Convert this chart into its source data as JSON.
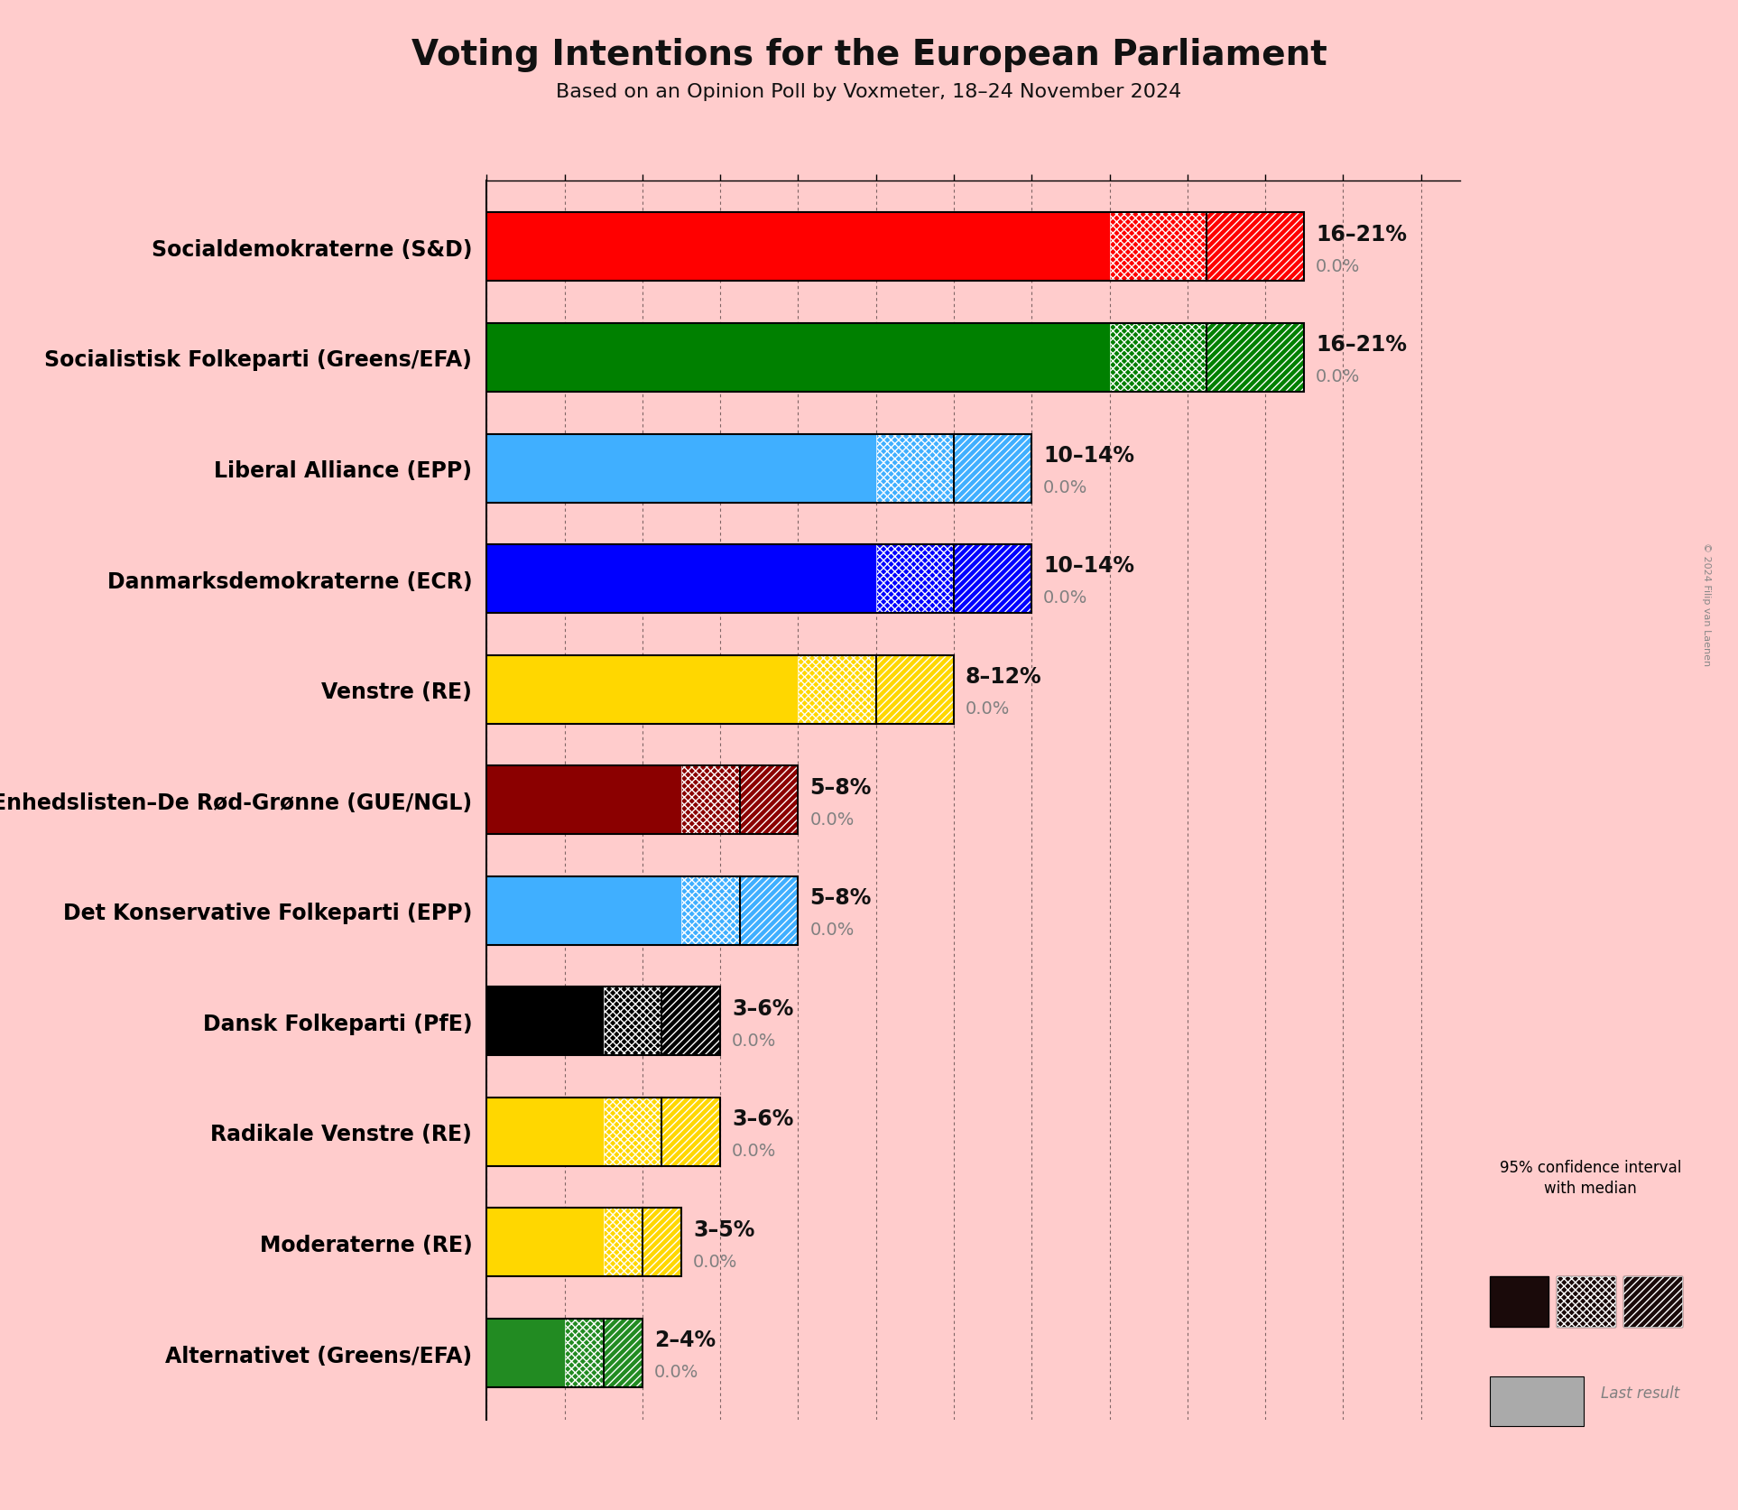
{
  "title": "Voting Intentions for the European Parliament",
  "subtitle": "Based on an Opinion Poll by Voxmeter, 18–24 November 2024",
  "copyright": "© 2024 Filip van Laenen",
  "background_color": "#FFCCCC",
  "parties": [
    {
      "name": "Socialdemokraterne (S&D)",
      "color": "#FF0000",
      "low": 16,
      "high": 21,
      "median": 18.5,
      "last": 0.0
    },
    {
      "name": "Socialistisk Folkeparti (Greens/EFA)",
      "color": "#008000",
      "low": 16,
      "high": 21,
      "median": 18.5,
      "last": 0.0
    },
    {
      "name": "Liberal Alliance (EPP)",
      "color": "#40AFFF",
      "low": 10,
      "high": 14,
      "median": 12.0,
      "last": 0.0
    },
    {
      "name": "Danmarksdemokraterne (ECR)",
      "color": "#0000FF",
      "low": 10,
      "high": 14,
      "median": 12.0,
      "last": 0.0
    },
    {
      "name": "Venstre (RE)",
      "color": "#FFD700",
      "low": 8,
      "high": 12,
      "median": 10.0,
      "last": 0.0
    },
    {
      "name": "Enhedslisten–De Rød-Grønne (GUE/NGL)",
      "color": "#8B0000",
      "low": 5,
      "high": 8,
      "median": 6.5,
      "last": 0.0
    },
    {
      "name": "Det Konservative Folkeparti (EPP)",
      "color": "#40AFFF",
      "low": 5,
      "high": 8,
      "median": 6.5,
      "last": 0.0
    },
    {
      "name": "Dansk Folkeparti (PfE)",
      "color": "#000000",
      "low": 3,
      "high": 6,
      "median": 4.5,
      "last": 0.0
    },
    {
      "name": "Radikale Venstre (RE)",
      "color": "#FFD700",
      "low": 3,
      "high": 6,
      "median": 4.5,
      "last": 0.0
    },
    {
      "name": "Moderaterne (RE)",
      "color": "#FFD700",
      "low": 3,
      "high": 5,
      "median": 4.0,
      "last": 0.0
    },
    {
      "name": "Alternativet (Greens/EFA)",
      "color": "#228B22",
      "low": 2,
      "high": 4,
      "median": 3.0,
      "last": 0.0
    }
  ],
  "xlim": [
    0,
    25
  ],
  "bar_height": 0.62,
  "legend_dark_color": "#1a0a0a",
  "legend_gray_color": "#aaaaaa"
}
